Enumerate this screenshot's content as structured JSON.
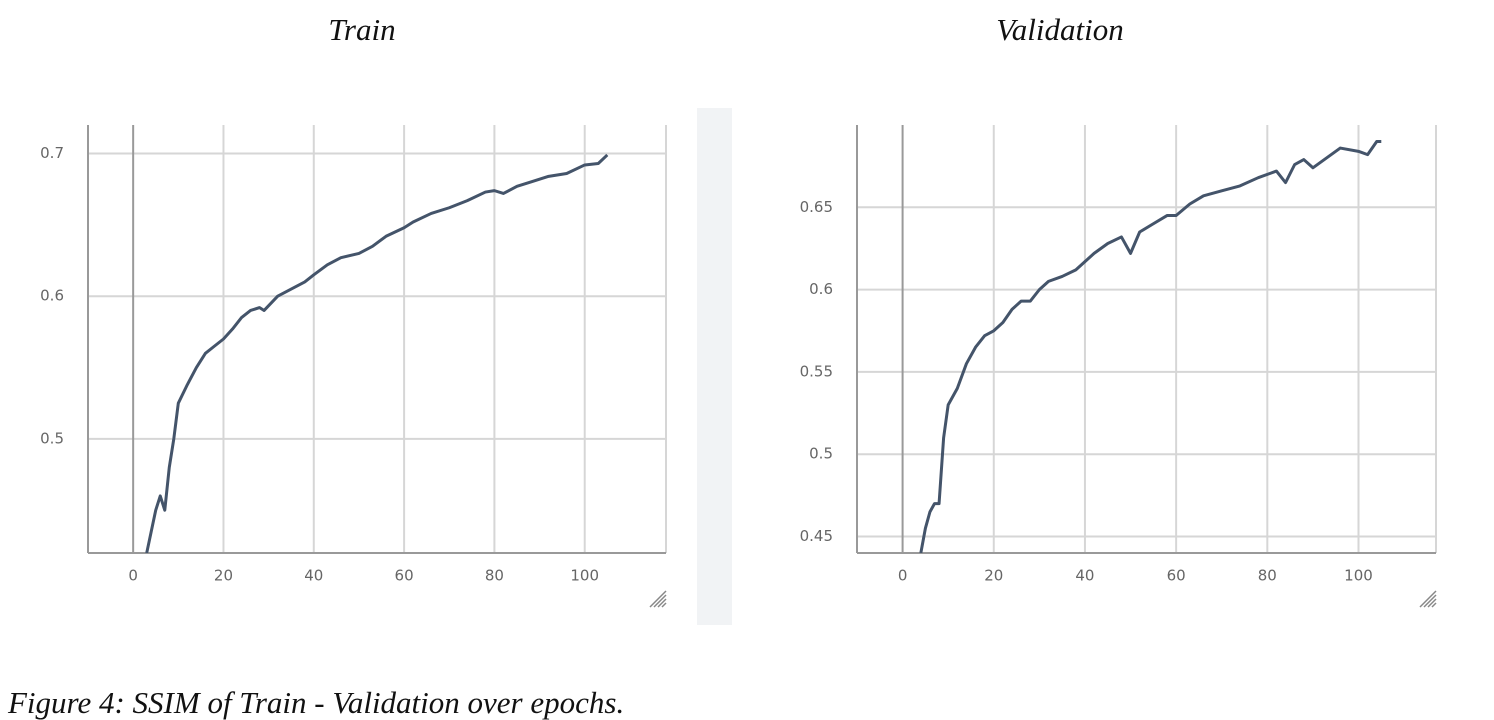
{
  "chart_data": [
    {
      "type": "line",
      "title": "Train",
      "color": "#44546a",
      "grid": true,
      "xlim": [
        -10,
        118
      ],
      "xticks": [
        0,
        20,
        40,
        60,
        80,
        100
      ],
      "ylim": [
        0.42,
        0.72
      ],
      "yticks": [
        0.5,
        0.6,
        0.7
      ],
      "x": [
        3,
        4,
        5,
        6,
        7,
        8,
        9,
        10,
        12,
        14,
        16,
        18,
        20,
        22,
        24,
        26,
        28,
        29,
        32,
        35,
        38,
        40,
        43,
        46,
        50,
        53,
        56,
        60,
        62,
        66,
        70,
        74,
        78,
        80,
        82,
        85,
        88,
        92,
        96,
        100,
        103,
        105
      ],
      "values": [
        0.42,
        0.435,
        0.45,
        0.46,
        0.45,
        0.48,
        0.5,
        0.525,
        0.538,
        0.55,
        0.56,
        0.565,
        0.57,
        0.577,
        0.585,
        0.59,
        0.592,
        0.59,
        0.6,
        0.605,
        0.61,
        0.615,
        0.622,
        0.627,
        0.63,
        0.635,
        0.642,
        0.648,
        0.652,
        0.658,
        0.662,
        0.667,
        0.673,
        0.674,
        0.672,
        0.677,
        0.68,
        0.684,
        0.686,
        0.692,
        0.693,
        0.699
      ]
    },
    {
      "type": "line",
      "title": "Validation",
      "color": "#44546a",
      "grid": true,
      "xlim": [
        -10,
        117
      ],
      "xticks": [
        0,
        20,
        40,
        60,
        80,
        100
      ],
      "ylim": [
        0.44,
        0.7
      ],
      "yticks": [
        0.45,
        0.5,
        0.55,
        0.6,
        0.65
      ],
      "x": [
        4,
        5,
        6,
        7,
        8,
        9,
        10,
        12,
        14,
        16,
        18,
        20,
        22,
        24,
        26,
        28,
        30,
        32,
        35,
        38,
        40,
        42,
        45,
        48,
        50,
        52,
        55,
        58,
        60,
        63,
        66,
        70,
        74,
        78,
        82,
        84,
        86,
        88,
        90,
        93,
        96,
        100,
        102,
        104,
        105
      ],
      "values": [
        0.44,
        0.455,
        0.465,
        0.47,
        0.47,
        0.51,
        0.53,
        0.54,
        0.555,
        0.565,
        0.572,
        0.575,
        0.58,
        0.588,
        0.593,
        0.593,
        0.6,
        0.605,
        0.608,
        0.612,
        0.617,
        0.622,
        0.628,
        0.632,
        0.622,
        0.635,
        0.64,
        0.645,
        0.645,
        0.652,
        0.657,
        0.66,
        0.663,
        0.668,
        0.672,
        0.665,
        0.676,
        0.679,
        0.674,
        0.68,
        0.686,
        0.684,
        0.682,
        0.69,
        0.69
      ]
    }
  ],
  "caption": "Figure 4: SSIM of Train - Validation over epochs."
}
